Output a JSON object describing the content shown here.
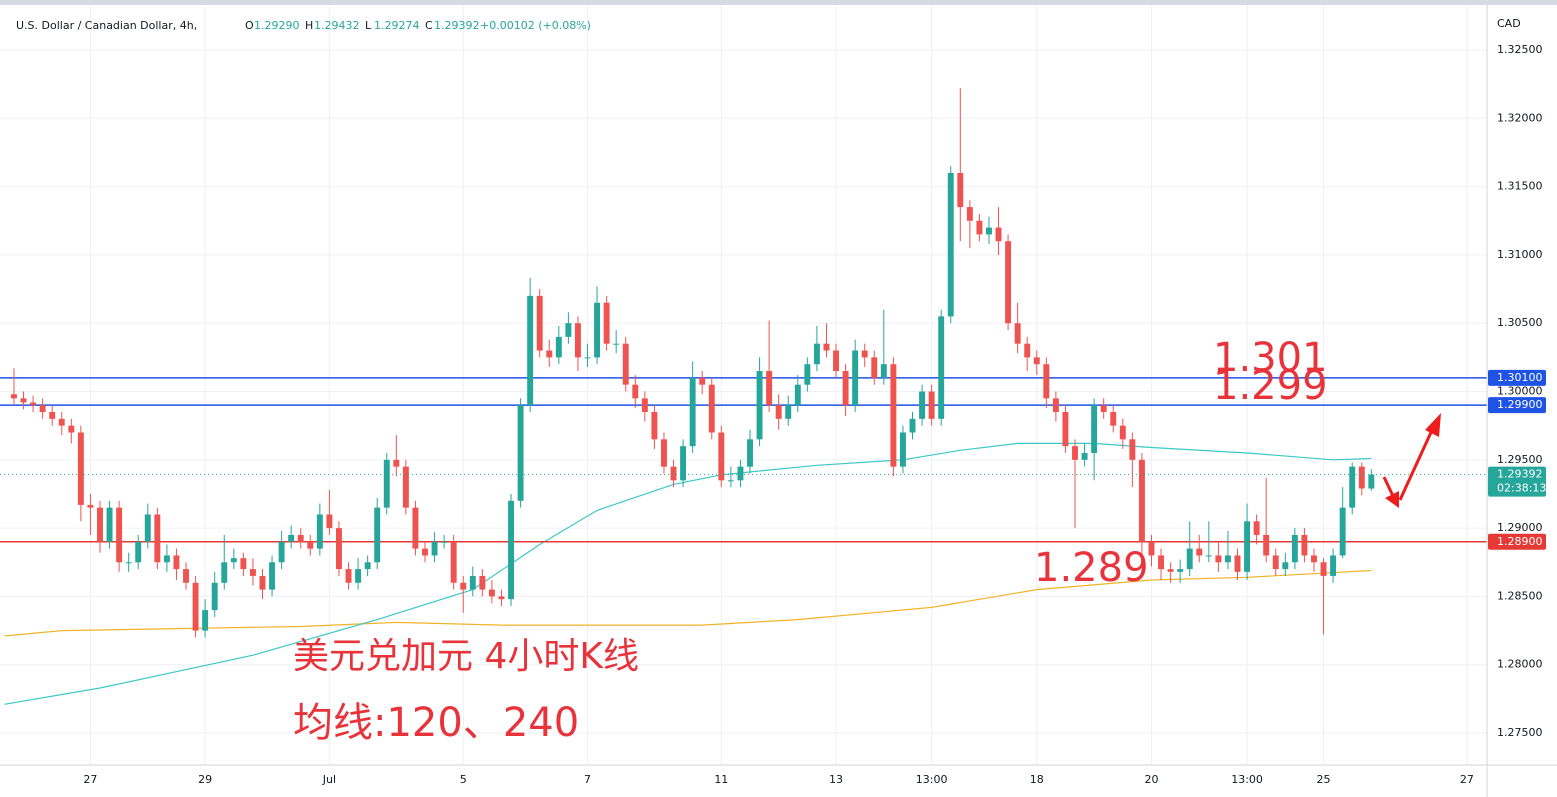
{
  "header": {
    "symbol": "U.S. Dollar / Canadian Dollar, 4h,",
    "ohlc": [
      [
        "O",
        "1.29290"
      ],
      [
        "H",
        "1.29432"
      ],
      [
        "L",
        "1.29274"
      ],
      [
        "C",
        "1.29392"
      ]
    ],
    "change": "+0.00102 (+0.08%)",
    "currency": "CAD"
  },
  "chart_data": {
    "type": "candlestick",
    "up_color": "#26a69a",
    "down_color": "#ef5350",
    "grid": true,
    "xlim": [
      -1.46,
      154.1
    ],
    "ylim": [
      1.27266,
      1.32866
    ],
    "xticks": [
      {
        "value": 8,
        "label": "27"
      },
      {
        "value": 20,
        "label": "29"
      },
      {
        "value": 33,
        "label": "Jul"
      },
      {
        "value": 47,
        "label": "5"
      },
      {
        "value": 60,
        "label": "7"
      },
      {
        "value": 74,
        "label": "11"
      },
      {
        "value": 86,
        "label": "13"
      },
      {
        "value": 96,
        "label": "13:00"
      },
      {
        "value": 107,
        "label": "18"
      },
      {
        "value": 119,
        "label": "20"
      },
      {
        "value": 129,
        "label": "13:00"
      },
      {
        "value": 137,
        "label": "25"
      },
      {
        "value": 152,
        "label": "27"
      }
    ],
    "yticks": [
      {
        "value": 1.275,
        "label": "1.27500"
      },
      {
        "value": 1.28,
        "label": "1.28000"
      },
      {
        "value": 1.285,
        "label": "1.28500"
      },
      {
        "value": 1.29,
        "label": "1.29000"
      },
      {
        "value": 1.295,
        "label": "1.29500"
      },
      {
        "value": 1.3,
        "label": "1.30000"
      },
      {
        "value": 1.305,
        "label": "1.30500"
      },
      {
        "value": 1.31,
        "label": "1.31000"
      },
      {
        "value": 1.315,
        "label": "1.31500"
      },
      {
        "value": 1.32,
        "label": "1.32000"
      },
      {
        "value": 1.325,
        "label": "1.32500"
      }
    ],
    "open": [
      1.2998,
      1.2995,
      1.2992,
      1.299,
      1.2985,
      1.298,
      1.2975,
      1.297,
      1.2917,
      1.2915,
      1.289,
      1.2915,
      1.2875,
      1.2875,
      1.289,
      1.291,
      1.2875,
      1.288,
      1.287,
      1.286,
      1.2825,
      1.284,
      1.286,
      1.2875,
      1.2878,
      1.287,
      1.2865,
      1.2855,
      1.2875,
      1.289,
      1.2895,
      1.289,
      1.2885,
      1.291,
      1.29,
      1.287,
      1.286,
      1.287,
      1.2875,
      1.2915,
      1.295,
      1.2945,
      1.2915,
      1.2885,
      1.288,
      1.289,
      1.289,
      1.286,
      1.2855,
      1.2865,
      1.2855,
      1.285,
      1.2848,
      1.292,
      1.299,
      1.307,
      1.303,
      1.3025,
      1.304,
      1.305,
      1.3025,
      1.3025,
      1.3065,
      1.3035,
      1.3035,
      1.3005,
      1.2995,
      1.2985,
      1.2965,
      1.2945,
      1.2935,
      1.296,
      1.301,
      1.3005,
      1.297,
      1.2935,
      1.2935,
      1.2945,
      1.2965,
      1.3015,
      1.299,
      1.298,
      1.299,
      1.3005,
      1.302,
      1.3035,
      1.303,
      1.3015,
      1.299,
      1.303,
      1.3025,
      1.301,
      1.302,
      1.2945,
      1.297,
      1.298,
      1.3,
      1.298,
      1.3055,
      1.316,
      1.3135,
      1.3125,
      1.3115,
      1.312,
      1.311,
      1.305,
      1.3035,
      1.3025,
      1.302,
      1.2995,
      1.2985,
      1.296,
      1.295,
      1.2955,
      1.299,
      1.2985,
      1.2975,
      1.2965,
      1.295,
      1.289,
      1.288,
      1.287,
      1.2868,
      1.287,
      1.2885,
      1.288,
      1.288,
      1.2875,
      1.288,
      1.2868,
      1.2905,
      1.2895,
      1.288,
      1.287,
      1.2875,
      1.2895,
      1.288,
      1.2875,
      1.2865,
      1.288,
      1.2915,
      1.2945,
      1.2929
    ],
    "high": [
      1.3017,
      1.3,
      1.2997,
      1.2995,
      1.299,
      1.2985,
      1.298,
      1.2975,
      1.2925,
      1.292,
      1.292,
      1.292,
      1.2882,
      1.2895,
      1.2918,
      1.2915,
      1.2888,
      1.2885,
      1.2875,
      1.2865,
      1.2848,
      1.2868,
      1.2895,
      1.2885,
      1.2882,
      1.2878,
      1.287,
      1.288,
      1.2898,
      1.2902,
      1.29,
      1.2895,
      1.2918,
      1.2928,
      1.2905,
      1.2875,
      1.2878,
      1.288,
      1.2922,
      1.2955,
      1.2968,
      1.295,
      1.292,
      1.289,
      1.2897,
      1.2895,
      1.2895,
      1.2865,
      1.2872,
      1.287,
      1.2862,
      1.2855,
      1.2925,
      1.2995,
      1.3083,
      1.3075,
      1.3038,
      1.3048,
      1.3058,
      1.3055,
      1.3035,
      1.3077,
      1.307,
      1.3045,
      1.304,
      1.3012,
      1.3,
      1.299,
      1.297,
      1.295,
      1.2965,
      1.3022,
      1.3015,
      1.301,
      1.2975,
      1.2945,
      1.295,
      1.2972,
      1.3025,
      1.3052,
      1.2998,
      1.2997,
      1.3012,
      1.3025,
      1.3048,
      1.305,
      1.3035,
      1.302,
      1.3038,
      1.3035,
      1.303,
      1.306,
      1.3025,
      1.2975,
      1.2985,
      1.3005,
      1.3005,
      1.306,
      1.3165,
      1.3222,
      1.314,
      1.313,
      1.3128,
      1.3135,
      1.3115,
      1.3065,
      1.304,
      1.303,
      1.3025,
      1.3,
      1.299,
      1.2965,
      1.2962,
      1.2995,
      1.2995,
      1.299,
      1.298,
      1.297,
      1.2955,
      1.2895,
      1.2885,
      1.2875,
      1.2877,
      1.2905,
      1.2895,
      1.2905,
      1.289,
      1.2898,
      1.2885,
      1.2918,
      1.291,
      1.2937,
      1.2885,
      1.2882,
      1.29,
      1.29,
      1.2885,
      1.2878,
      1.2885,
      1.293,
      1.2948,
      1.2948,
      1.29432
    ],
    "low": [
      1.299,
      1.2987,
      1.2985,
      1.298,
      1.2975,
      1.2968,
      1.2962,
      1.2905,
      1.2895,
      1.2882,
      1.2885,
      1.2868,
      1.2868,
      1.287,
      1.2885,
      1.287,
      1.2868,
      1.2862,
      1.2855,
      1.282,
      1.282,
      1.2835,
      1.2855,
      1.287,
      1.2865,
      1.2858,
      1.2848,
      1.285,
      1.287,
      1.2885,
      1.2885,
      1.288,
      1.288,
      1.2895,
      1.2865,
      1.2855,
      1.2855,
      1.2865,
      1.287,
      1.291,
      1.2938,
      1.291,
      1.288,
      1.2875,
      1.2875,
      1.2885,
      1.2855,
      1.2838,
      1.285,
      1.285,
      1.2845,
      1.2843,
      1.2843,
      1.2915,
      1.2985,
      1.3025,
      1.3018,
      1.302,
      1.3035,
      1.3015,
      1.3018,
      1.302,
      1.303,
      1.3028,
      1.3,
      1.2988,
      1.2978,
      1.2958,
      1.294,
      1.293,
      1.293,
      1.2955,
      1.2998,
      1.2965,
      1.293,
      1.293,
      1.293,
      1.294,
      1.296,
      1.2985,
      1.2972,
      1.2975,
      1.2985,
      1.3,
      1.3015,
      1.3025,
      1.301,
      1.2982,
      1.2985,
      1.3018,
      1.3005,
      1.3005,
      1.2938,
      1.294,
      1.2965,
      1.2975,
      1.2975,
      1.2975,
      1.305,
      1.311,
      1.3105,
      1.311,
      1.3108,
      1.31,
      1.3045,
      1.3028,
      1.3015,
      1.3012,
      1.2988,
      1.2978,
      1.2955,
      1.29,
      1.2945,
      1.2935,
      1.298,
      1.297,
      1.2958,
      1.293,
      1.2878,
      1.2872,
      1.2862,
      1.286,
      1.286,
      1.2865,
      1.2875,
      1.2875,
      1.2868,
      1.287,
      1.2862,
      1.2862,
      1.2888,
      1.2875,
      1.2865,
      1.2865,
      1.287,
      1.2875,
      1.2868,
      1.2822,
      1.286,
      1.2878,
      1.291,
      1.2924,
      1.29274
    ],
    "close": [
      1.2995,
      1.2992,
      1.299,
      1.2985,
      1.298,
      1.2975,
      1.297,
      1.2917,
      1.2915,
      1.289,
      1.2915,
      1.2875,
      1.2875,
      1.289,
      1.291,
      1.2875,
      1.288,
      1.287,
      1.286,
      1.2825,
      1.284,
      1.286,
      1.2875,
      1.2878,
      1.287,
      1.2865,
      1.2855,
      1.2875,
      1.289,
      1.2895,
      1.289,
      1.2885,
      1.291,
      1.29,
      1.287,
      1.286,
      1.287,
      1.2875,
      1.2915,
      1.295,
      1.2945,
      1.2915,
      1.2885,
      1.288,
      1.289,
      1.289,
      1.286,
      1.2855,
      1.2865,
      1.2855,
      1.285,
      1.2848,
      1.292,
      1.299,
      1.307,
      1.303,
      1.3025,
      1.304,
      1.305,
      1.3025,
      1.3025,
      1.3065,
      1.3035,
      1.3035,
      1.3005,
      1.2995,
      1.2985,
      1.2965,
      1.2945,
      1.2935,
      1.296,
      1.301,
      1.3005,
      1.297,
      1.2935,
      1.2935,
      1.2945,
      1.2965,
      1.3015,
      1.299,
      1.298,
      1.299,
      1.3005,
      1.302,
      1.3035,
      1.303,
      1.3015,
      1.299,
      1.303,
      1.3025,
      1.301,
      1.302,
      1.2945,
      1.297,
      1.298,
      1.3,
      1.298,
      1.3055,
      1.316,
      1.3135,
      1.3125,
      1.3115,
      1.312,
      1.311,
      1.305,
      1.3035,
      1.3025,
      1.302,
      1.2995,
      1.2985,
      1.296,
      1.295,
      1.2955,
      1.299,
      1.2985,
      1.2975,
      1.2965,
      1.295,
      1.289,
      1.288,
      1.287,
      1.2868,
      1.287,
      1.2885,
      1.288,
      1.288,
      1.2875,
      1.288,
      1.2868,
      1.2905,
      1.2895,
      1.288,
      1.287,
      1.2875,
      1.2895,
      1.288,
      1.2875,
      1.2865,
      1.288,
      1.2915,
      1.2945,
      1.2929,
      1.29392
    ],
    "lines": [
      {
        "color": "#f0b429",
        "x": [
          -1,
          5,
          30,
          40,
          51,
          72,
          82,
          96,
          107,
          119,
          129,
          142
        ],
        "values": [
          1.2821,
          1.2825,
          1.2828,
          1.2831,
          1.2829,
          1.2829,
          1.2833,
          1.2842,
          1.2855,
          1.2862,
          1.2864,
          1.2869
        ]
      },
      {
        "color": "#3cc8c8",
        "x": [
          -1,
          9,
          25,
          38,
          48,
          55,
          61,
          69,
          74,
          84,
          93,
          99,
          105,
          113,
          119,
          129,
          138,
          142
        ],
        "values": [
          1.2771,
          1.2783,
          1.2807,
          1.2833,
          1.2855,
          1.2888,
          1.2913,
          1.2932,
          1.2939,
          1.2946,
          1.295,
          1.2957,
          1.2962,
          1.2962,
          1.2959,
          1.2955,
          1.295,
          1.2951
        ]
      }
    ],
    "levels": [
      {
        "value": 1.301,
        "label": "1.30100",
        "color": "#1e53e5"
      },
      {
        "value": 1.299,
        "label": "1.29900",
        "color": "#1e53e5"
      },
      {
        "value": 1.289,
        "label": "1.28900",
        "color": "#e53935"
      }
    ],
    "last": {
      "value": 1.29392,
      "label": "1.29392",
      "countdown": "02:38:13",
      "color": "#26a69a"
    },
    "annotations": [
      "1.301",
      "1.299",
      "1.289",
      "美元兑加元 4小时K线",
      "均线:120、240"
    ]
  }
}
